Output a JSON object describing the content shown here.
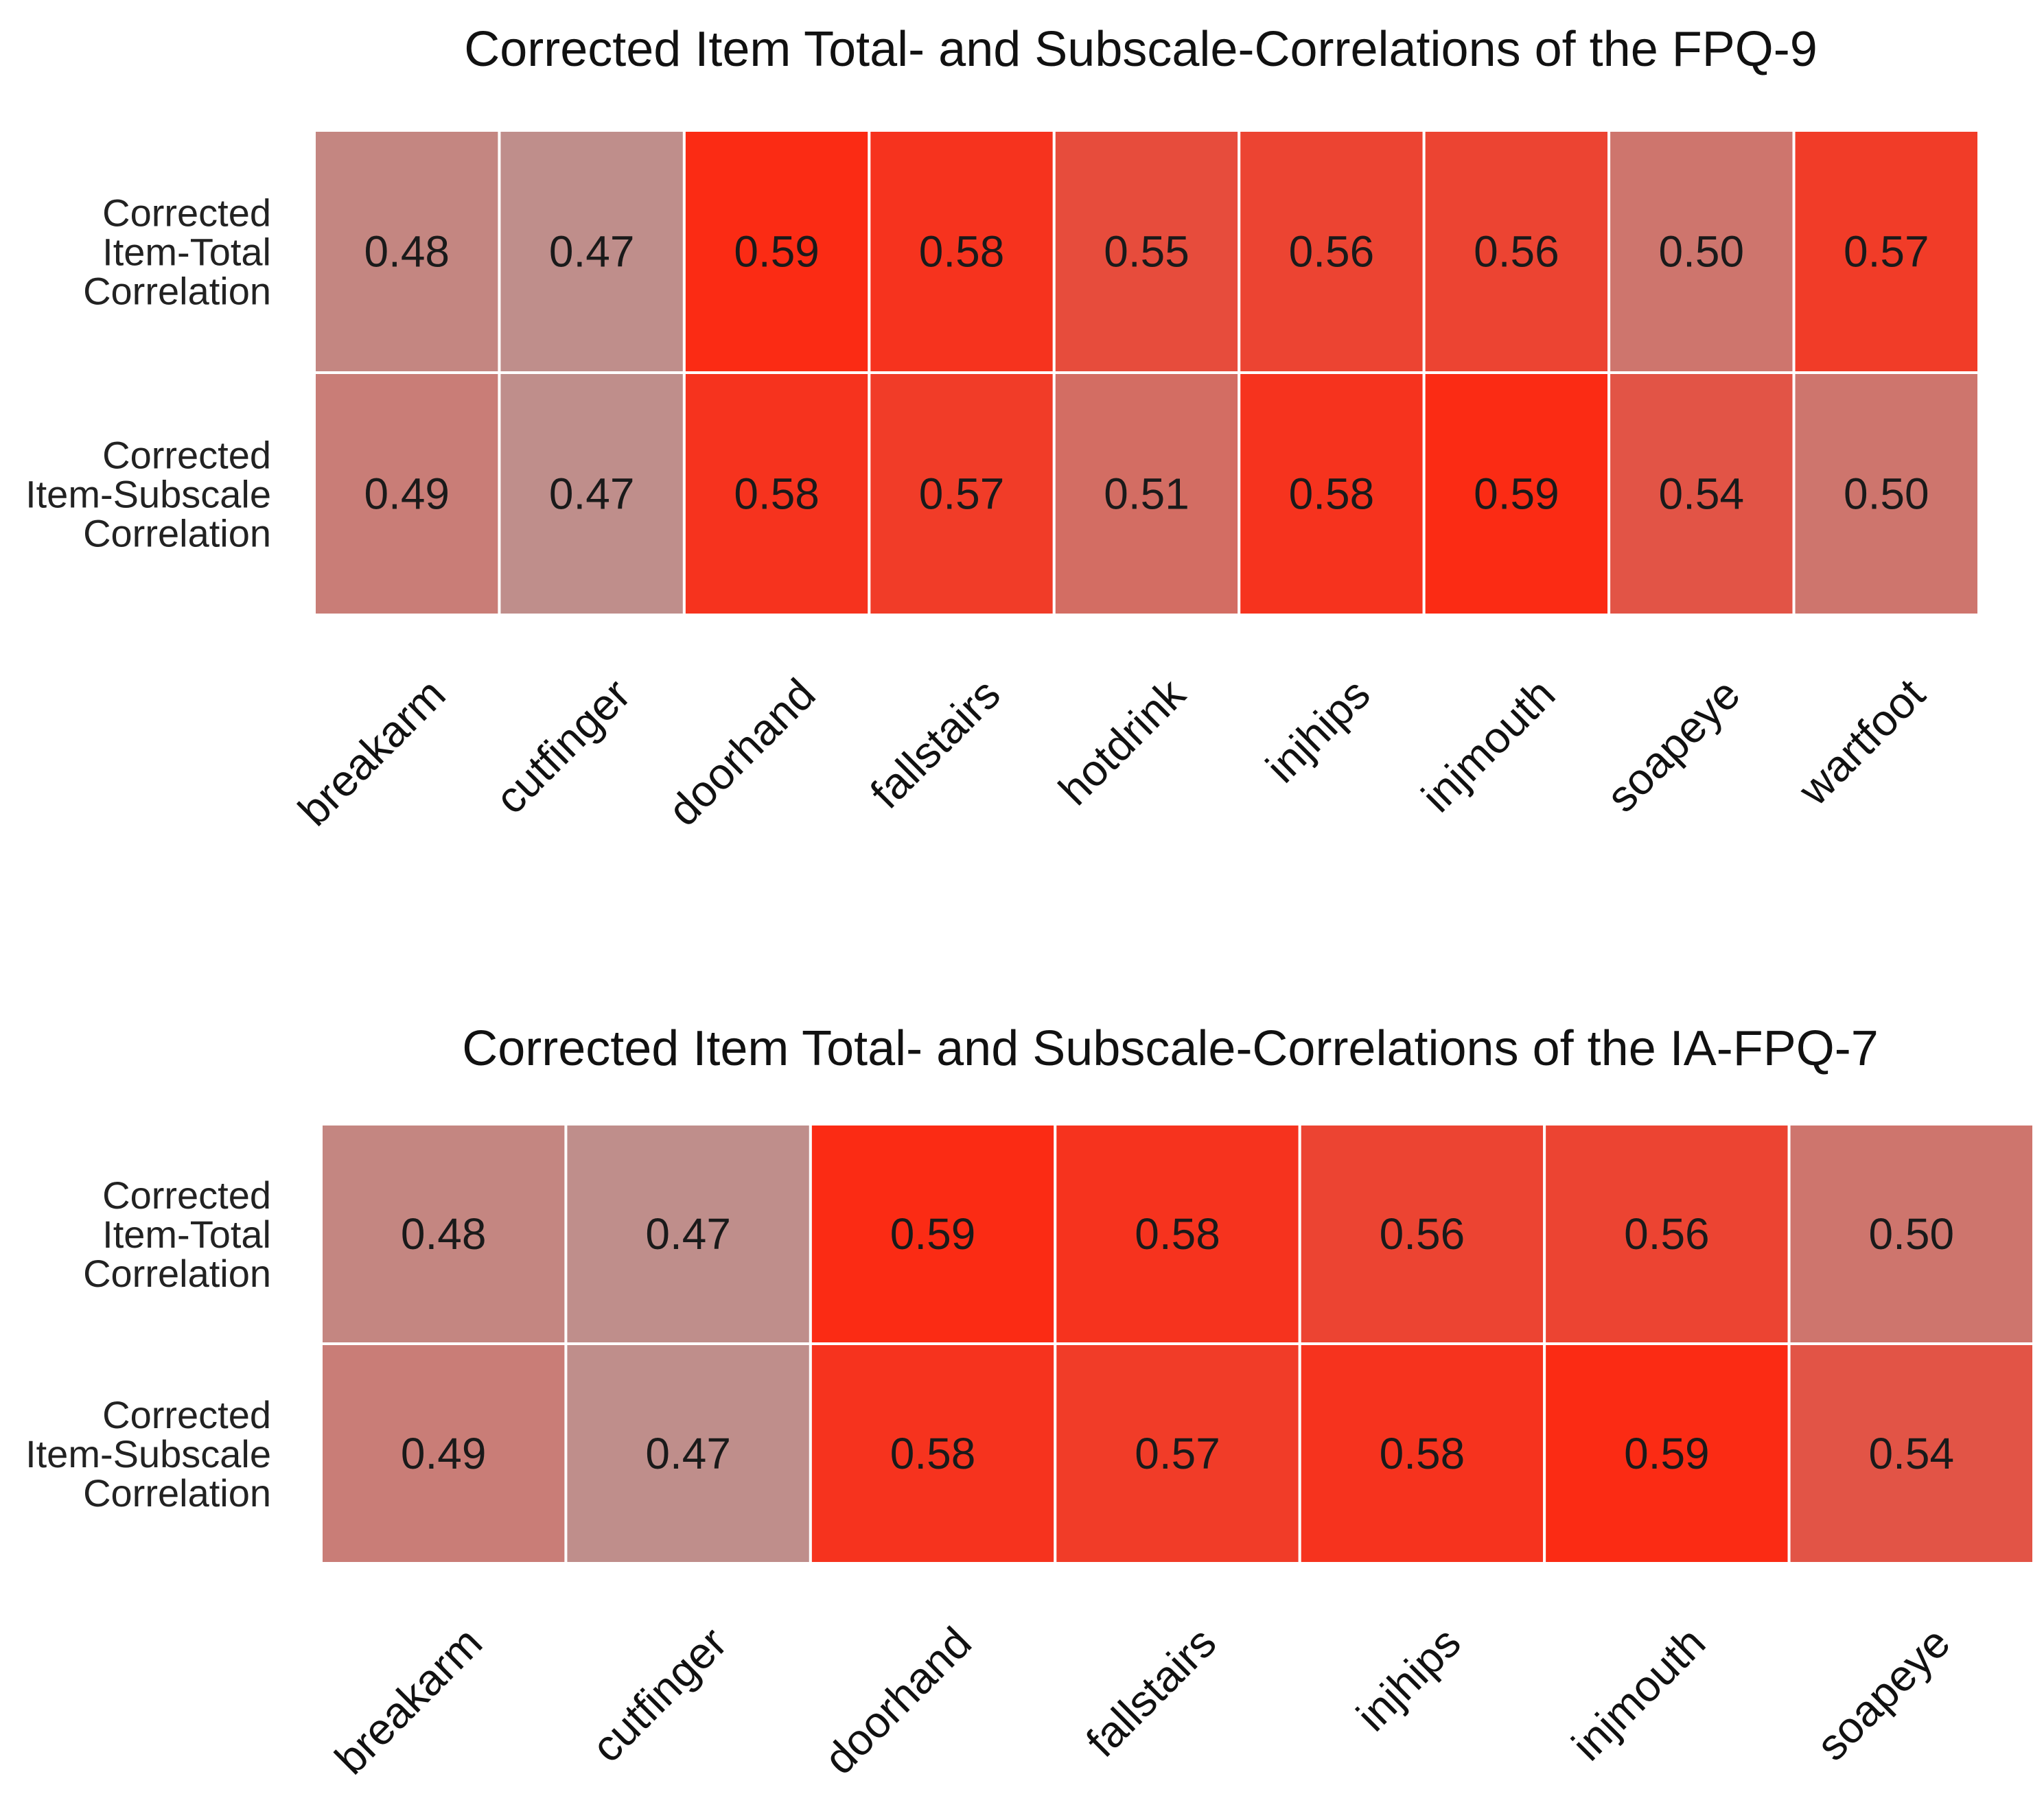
{
  "chart_data": [
    {
      "type": "heatmap",
      "title": "Corrected Item Total- and Subscale-Correlations of the FPQ-9",
      "rows": [
        [
          "Corrected",
          "Item-Total",
          "Correlation"
        ],
        [
          "Corrected",
          "Item-Subscale",
          "Correlation"
        ]
      ],
      "columns": [
        "breakarm",
        "cutfinger",
        "doorhand",
        "fallstairs",
        "hotdrink",
        "injhips",
        "injmouth",
        "soapeye",
        "wartfoot"
      ],
      "values": [
        [
          0.48,
          0.47,
          0.59,
          0.58,
          0.55,
          0.56,
          0.56,
          0.5,
          0.57
        ],
        [
          0.49,
          0.47,
          0.58,
          0.57,
          0.51,
          0.58,
          0.59,
          0.54,
          0.5
        ]
      ],
      "value_range": [
        0.47,
        0.59
      ],
      "color_low": "#bf8e8b",
      "color_high": "#fb2b14"
    },
    {
      "type": "heatmap",
      "title": "Corrected Item Total- and Subscale-Correlations of the IA-FPQ-7",
      "rows": [
        [
          "Corrected",
          "Item-Total",
          "Correlation"
        ],
        [
          "Corrected",
          "Item-Subscale",
          "Correlation"
        ]
      ],
      "columns": [
        "breakarm",
        "cutfinger",
        "doorhand",
        "fallstairs",
        "injhips",
        "injmouth",
        "soapeye"
      ],
      "values": [
        [
          0.48,
          0.47,
          0.59,
          0.58,
          0.56,
          0.56,
          0.5
        ],
        [
          0.49,
          0.47,
          0.58,
          0.57,
          0.58,
          0.59,
          0.54
        ]
      ],
      "value_range": [
        0.47,
        0.59
      ],
      "color_low": "#bf8e8b",
      "color_high": "#fb2b14"
    }
  ]
}
